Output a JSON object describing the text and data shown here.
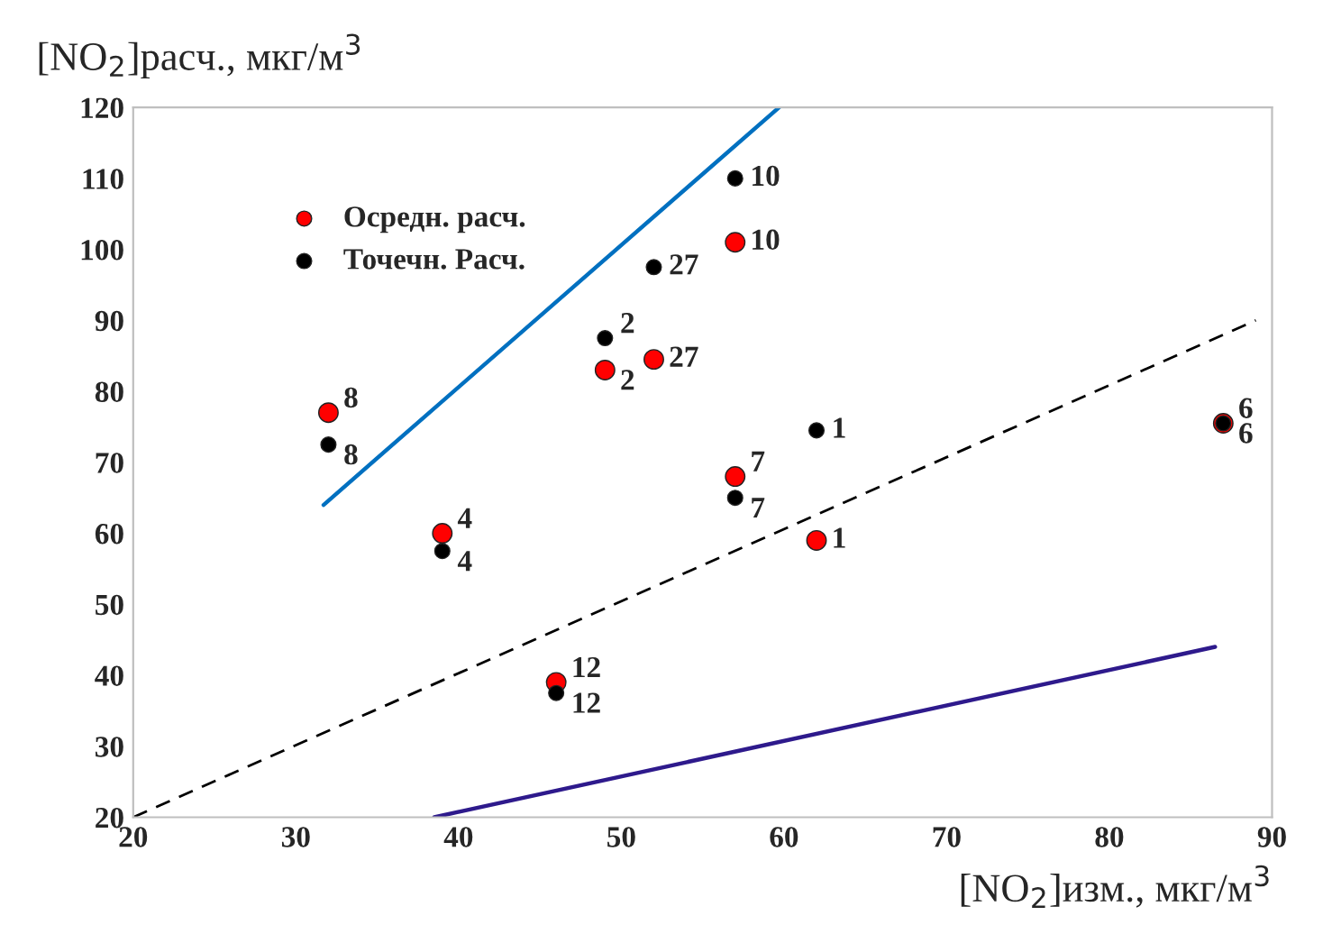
{
  "chart_data": {
    "type": "scatter",
    "xlabel": "[NO$_{2}$]изм., мкг/м$^{3}$",
    "ylabel": "[NO$_{2}$]расч., мкг/м$^{3}$",
    "xlim": [
      20,
      90
    ],
    "ylim": [
      20,
      120
    ],
    "xticks": [
      20,
      30,
      40,
      50,
      60,
      70,
      80,
      90
    ],
    "yticks": [
      20,
      30,
      40,
      50,
      60,
      70,
      80,
      90,
      100,
      110,
      120
    ],
    "grid": false,
    "legend": "top left",
    "series": [
      {
        "name": "Осредн. расч.",
        "color": "#ff0000",
        "marker": "circle",
        "x": [
          32,
          39,
          49,
          52,
          57,
          57,
          62,
          46,
          87
        ],
        "values": [
          77,
          60,
          83,
          84.5,
          101,
          68,
          59,
          39,
          75.5
        ]
      },
      {
        "name": "Точечн. Расч.",
        "color": "#000000",
        "marker": "circle",
        "x": [
          32,
          39,
          49,
          52,
          57,
          57,
          62,
          46,
          87
        ],
        "values": [
          72.5,
          57.5,
          87.5,
          97.5,
          110,
          65,
          74.5,
          37.5,
          75.5
        ]
      },
      {
        "type": "line",
        "color": "#000000",
        "marker": "none",
        "line_style": "dashed",
        "x": [
          20,
          89
        ],
        "values": [
          20,
          90
        ]
      },
      {
        "type": "line",
        "color": "#0070c0",
        "marker": "none",
        "line_style": "solid",
        "x": [
          31.7,
          59.7
        ],
        "values": [
          64,
          120
        ]
      },
      {
        "type": "line",
        "color": "#2e1a8c",
        "marker": "none",
        "line_style": "solid",
        "x": [
          38.5,
          86.5
        ],
        "values": [
          20,
          44
        ]
      }
    ],
    "annotations": [
      {
        "text": "8",
        "x": 32,
        "y": 77
      },
      {
        "text": "4",
        "x": 39,
        "y": 60
      },
      {
        "text": "2",
        "x": 49,
        "y": 83
      },
      {
        "text": "27",
        "x": 52,
        "y": 84.5
      },
      {
        "text": "10",
        "x": 57,
        "y": 101
      },
      {
        "text": "7",
        "x": 57,
        "y": 68
      },
      {
        "text": "1",
        "x": 62,
        "y": 59
      },
      {
        "text": "12",
        "x": 46,
        "y": 39
      },
      {
        "text": "6",
        "x": 87,
        "y": 75.5
      },
      {
        "text": "8",
        "x": 32,
        "y": 72.5
      },
      {
        "text": "4",
        "x": 39,
        "y": 57.5
      },
      {
        "text": "2",
        "x": 49,
        "y": 87.5
      },
      {
        "text": "27",
        "x": 52,
        "y": 97.5
      },
      {
        "text": "10",
        "x": 57,
        "y": 110
      },
      {
        "text": "7",
        "x": 57,
        "y": 65
      },
      {
        "text": "1",
        "x": 62,
        "y": 74.5
      },
      {
        "text": "12",
        "x": 46,
        "y": 37.5
      },
      {
        "text": "6",
        "x": 87,
        "y": 75.5
      }
    ]
  }
}
